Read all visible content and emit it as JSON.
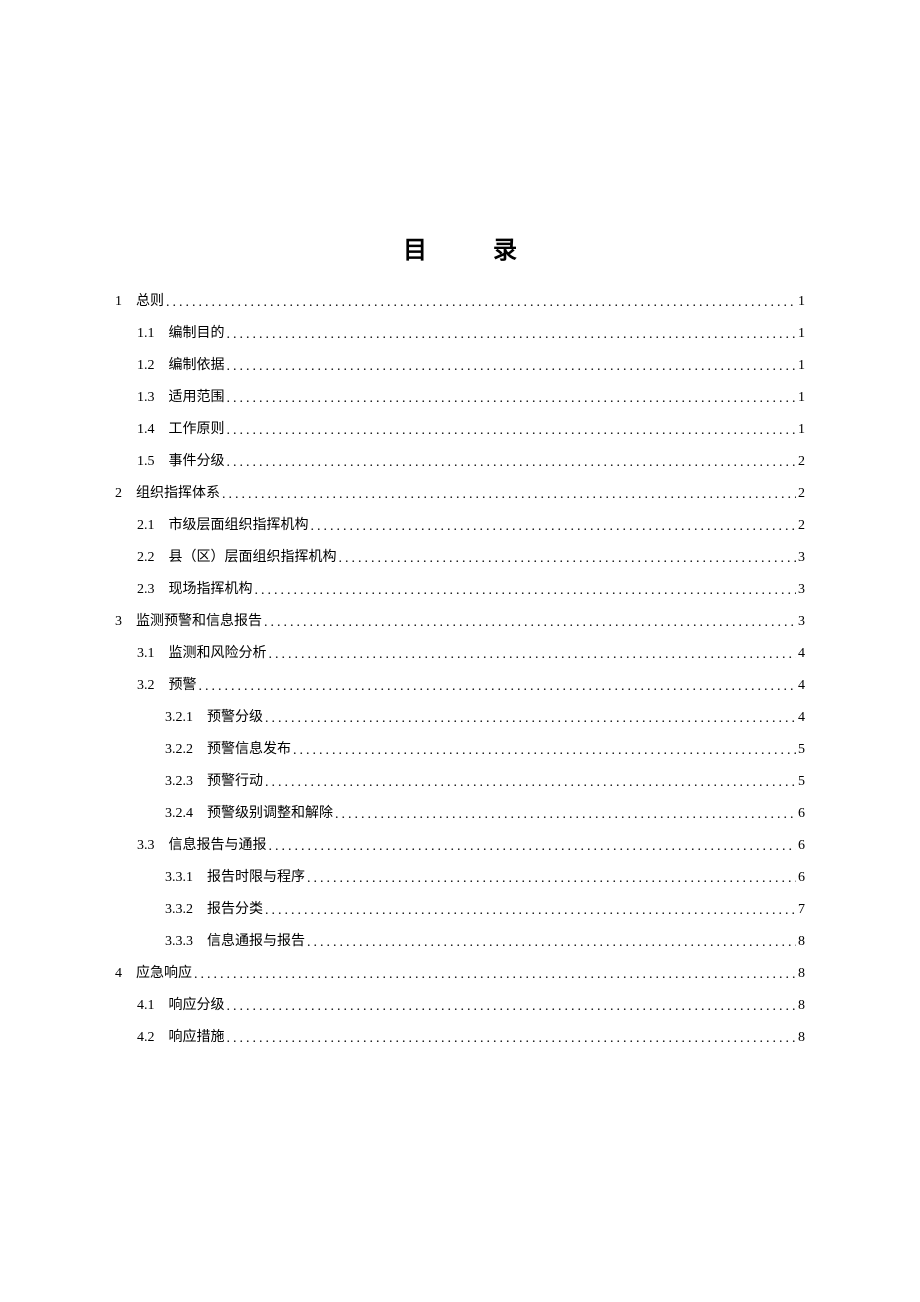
{
  "title": "目  录",
  "dots": "..........................................................................................................................................................................................................",
  "entries": [
    {
      "level": 0,
      "num": "1",
      "label": "总则",
      "page": "1"
    },
    {
      "level": 1,
      "num": "1.1",
      "label": "编制目的",
      "page": "1"
    },
    {
      "level": 1,
      "num": "1.2",
      "label": "编制依据",
      "page": "1"
    },
    {
      "level": 1,
      "num": "1.3",
      "label": "适用范围",
      "page": "1"
    },
    {
      "level": 1,
      "num": "1.4",
      "label": "工作原则",
      "page": "1"
    },
    {
      "level": 1,
      "num": "1.5",
      "label": "事件分级",
      "page": "2"
    },
    {
      "level": 0,
      "num": "2",
      "label": "组织指挥体系",
      "page": "2"
    },
    {
      "level": 1,
      "num": "2.1",
      "label": "市级层面组织指挥机构",
      "page": "2"
    },
    {
      "level": 1,
      "num": "2.2",
      "label": "县（区）层面组织指挥机构",
      "page": "3"
    },
    {
      "level": 1,
      "num": "2.3",
      "label": "现场指挥机构",
      "page": "3"
    },
    {
      "level": 0,
      "num": "3",
      "label": "监测预警和信息报告",
      "page": "3"
    },
    {
      "level": 1,
      "num": "3.1",
      "label": "监测和风险分析",
      "page": "4"
    },
    {
      "level": 1,
      "num": "3.2",
      "label": "预警",
      "page": "4"
    },
    {
      "level": 2,
      "num": "3.2.1",
      "label": "预警分级",
      "page": "4"
    },
    {
      "level": 2,
      "num": "3.2.2",
      "label": "预警信息发布",
      "page": "5"
    },
    {
      "level": 2,
      "num": "3.2.3",
      "label": "预警行动",
      "page": "5"
    },
    {
      "level": 2,
      "num": "3.2.4",
      "label": "预警级别调整和解除",
      "page": "6"
    },
    {
      "level": 1,
      "num": "3.3",
      "label": "信息报告与通报",
      "page": "6"
    },
    {
      "level": 2,
      "num": "3.3.1",
      "label": "报告时限与程序",
      "page": "6"
    },
    {
      "level": 2,
      "num": "3.3.2",
      "label": "报告分类",
      "page": "7"
    },
    {
      "level": 2,
      "num": "3.3.3",
      "label": "信息通报与报告",
      "page": "8"
    },
    {
      "level": 0,
      "num": "4",
      "label": "应急响应",
      "page": "8"
    },
    {
      "level": 1,
      "num": "4.1",
      "label": "响应分级",
      "page": "8"
    },
    {
      "level": 1,
      "num": "4.2",
      "label": "响应措施",
      "page": "8"
    }
  ],
  "colors": {
    "text": "#000000",
    "background": "#ffffff"
  },
  "typography": {
    "title_fontsize": 24,
    "body_fontsize": 14,
    "font_family": "SimSun"
  }
}
